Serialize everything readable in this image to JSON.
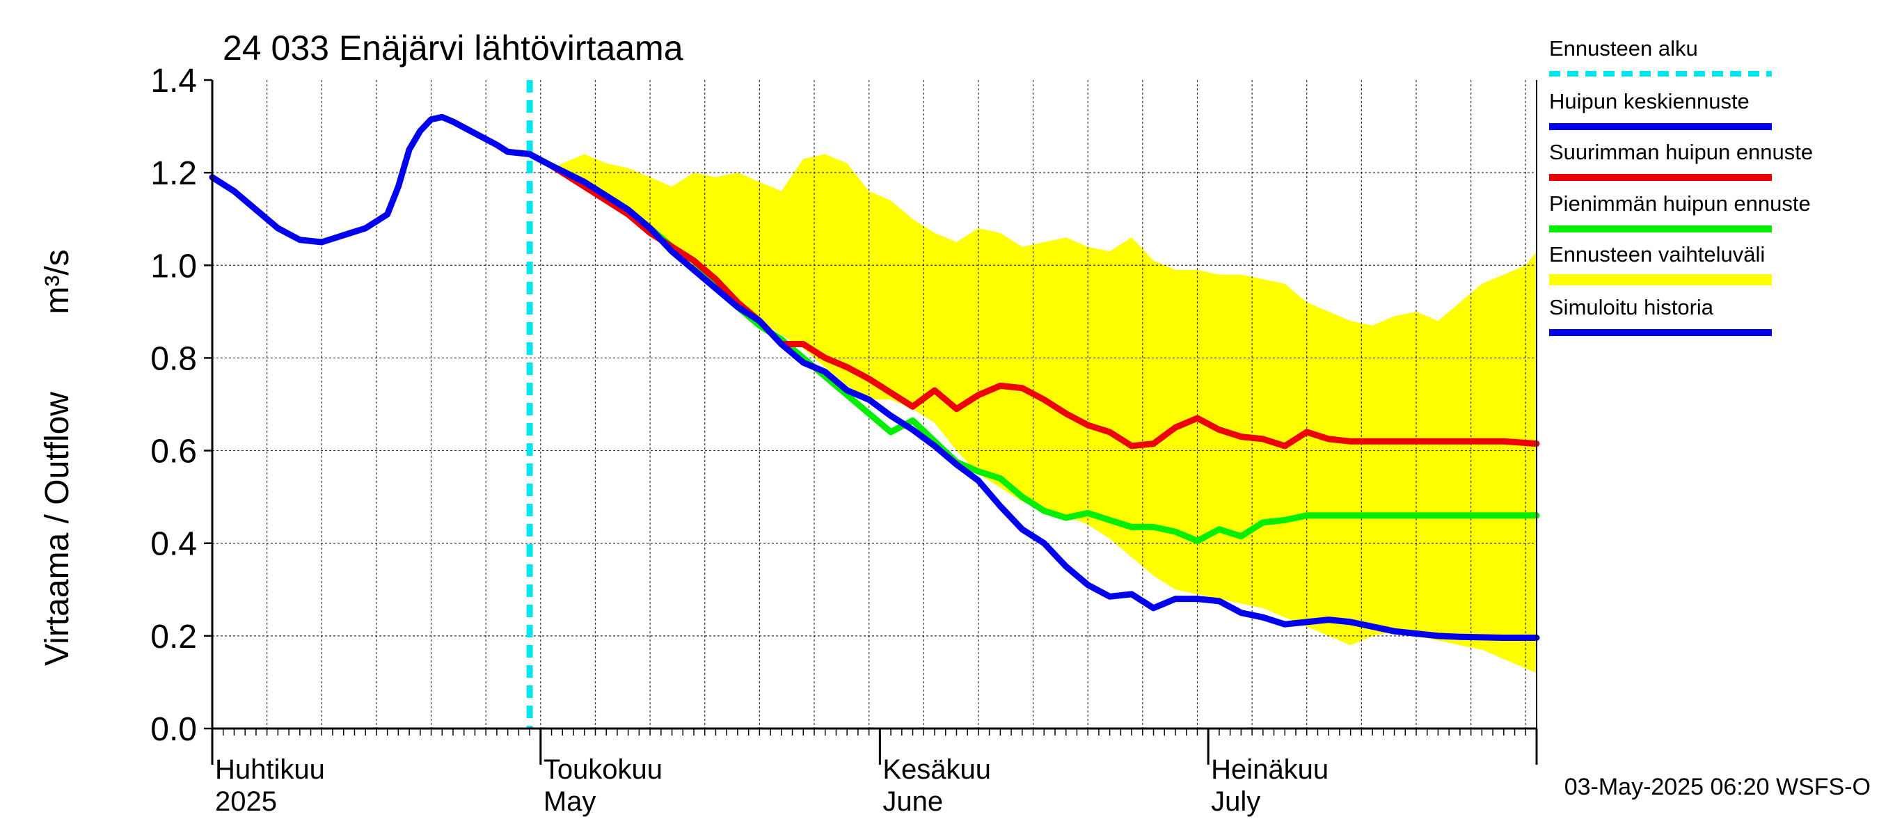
{
  "chart_data": {
    "type": "line",
    "title": "24 033 Enäjärvi lähtövirtaama",
    "ylabel": "Virtaama / Outflow",
    "yunit": "m³/s",
    "ylim": [
      0,
      1.4
    ],
    "yticks": [
      "0.0",
      "0.2",
      "0.4",
      "0.6",
      "0.8",
      "1.0",
      "1.2",
      "1.4"
    ],
    "xlim": [
      "2025-04-01",
      "2025-07-31"
    ],
    "month_labels": [
      {
        "fi": "Huhtikuu",
        "en": "2025",
        "date": "2025-04-01"
      },
      {
        "fi": "Toukokuu",
        "en": "May",
        "date": "2025-05-01"
      },
      {
        "fi": "Kesäkuu",
        "en": "June",
        "date": "2025-06-01"
      },
      {
        "fi": "Heinäkuu",
        "en": "July",
        "date": "2025-07-01"
      }
    ],
    "forecast_start": "2025-04-30",
    "footer": "03-May-2025 06:20 WSFS-O",
    "legend_position": "right",
    "legend": [
      {
        "label": "Ennusteen alku",
        "color": "#00e5ee",
        "style": "dashed"
      },
      {
        "label": "Huipun keskiennuste",
        "color": "#0000ee",
        "style": "solid"
      },
      {
        "label": "Suurimman huipun ennuste",
        "color": "#ee0000",
        "style": "solid"
      },
      {
        "label": "Pienimmän huipun ennuste",
        "color": "#00ee00",
        "style": "solid"
      },
      {
        "label": "Ennusteen vaihteluväli",
        "color": "#ffff00",
        "style": "band"
      },
      {
        "label": "Simuloitu historia",
        "color": "#0000ee",
        "style": "solid"
      }
    ],
    "band": {
      "x": [
        "2025-05-02",
        "2025-05-03",
        "2025-05-05",
        "2025-05-07",
        "2025-05-09",
        "2025-05-11",
        "2025-05-13",
        "2025-05-15",
        "2025-05-17",
        "2025-05-19",
        "2025-05-21",
        "2025-05-23",
        "2025-05-25",
        "2025-05-27",
        "2025-05-29",
        "2025-05-31",
        "2025-06-02",
        "2025-06-04",
        "2025-06-06",
        "2025-06-08",
        "2025-06-10",
        "2025-06-12",
        "2025-06-14",
        "2025-06-16",
        "2025-06-18",
        "2025-06-20",
        "2025-06-22",
        "2025-06-24",
        "2025-06-26",
        "2025-06-28",
        "2025-06-30",
        "2025-07-02",
        "2025-07-04",
        "2025-07-06",
        "2025-07-08",
        "2025-07-10",
        "2025-07-12",
        "2025-07-14",
        "2025-07-16",
        "2025-07-18",
        "2025-07-20",
        "2025-07-22",
        "2025-07-24",
        "2025-07-26",
        "2025-07-28",
        "2025-07-30",
        "2025-07-31"
      ],
      "upper": [
        1.21,
        1.22,
        1.24,
        1.22,
        1.21,
        1.19,
        1.17,
        1.2,
        1.19,
        1.2,
        1.18,
        1.16,
        1.23,
        1.24,
        1.22,
        1.16,
        1.14,
        1.1,
        1.07,
        1.05,
        1.08,
        1.07,
        1.04,
        1.05,
        1.06,
        1.04,
        1.03,
        1.06,
        1.01,
        0.99,
        0.99,
        0.98,
        0.98,
        0.97,
        0.96,
        0.92,
        0.9,
        0.88,
        0.87,
        0.89,
        0.9,
        0.88,
        0.92,
        0.96,
        0.98,
        1.0,
        1.03
      ],
      "lower": [
        1.21,
        1.2,
        1.18,
        1.15,
        1.11,
        1.08,
        1.03,
        0.99,
        0.95,
        0.91,
        0.88,
        0.85,
        0.82,
        0.78,
        0.74,
        0.71,
        0.71,
        0.69,
        0.66,
        0.6,
        0.55,
        0.52,
        0.49,
        0.47,
        0.46,
        0.44,
        0.41,
        0.37,
        0.33,
        0.3,
        0.29,
        0.28,
        0.27,
        0.26,
        0.24,
        0.22,
        0.2,
        0.18,
        0.2,
        0.21,
        0.2,
        0.19,
        0.18,
        0.17,
        0.15,
        0.13,
        0.12
      ]
    },
    "series": [
      {
        "name": "Simuloitu historia",
        "color": "#0000ee",
        "x": [
          "2025-04-01",
          "2025-04-03",
          "2025-04-05",
          "2025-04-07",
          "2025-04-09",
          "2025-04-11",
          "2025-04-13",
          "2025-04-15",
          "2025-04-17",
          "2025-04-18",
          "2025-04-19",
          "2025-04-20",
          "2025-04-21",
          "2025-04-22",
          "2025-04-23",
          "2025-04-25",
          "2025-04-27",
          "2025-04-28",
          "2025-04-30",
          "2025-05-02"
        ],
        "y": [
          1.19,
          1.16,
          1.12,
          1.08,
          1.055,
          1.05,
          1.065,
          1.08,
          1.11,
          1.17,
          1.25,
          1.29,
          1.315,
          1.32,
          1.31,
          1.285,
          1.26,
          1.245,
          1.24,
          1.215
        ]
      },
      {
        "name": "Huipun keskiennuste",
        "color": "#0000ee",
        "x": [
          "2025-05-02",
          "2025-05-05",
          "2025-05-07",
          "2025-05-09",
          "2025-05-11",
          "2025-05-13",
          "2025-05-15",
          "2025-05-17",
          "2025-05-19",
          "2025-05-21",
          "2025-05-23",
          "2025-05-25",
          "2025-05-27",
          "2025-05-29",
          "2025-05-31",
          "2025-06-02",
          "2025-06-04",
          "2025-06-06",
          "2025-06-08",
          "2025-06-10",
          "2025-06-12",
          "2025-06-14",
          "2025-06-16",
          "2025-06-18",
          "2025-06-20",
          "2025-06-22",
          "2025-06-24",
          "2025-06-26",
          "2025-06-28",
          "2025-06-30",
          "2025-07-02",
          "2025-07-04",
          "2025-07-06",
          "2025-07-08",
          "2025-07-10",
          "2025-07-12",
          "2025-07-14",
          "2025-07-16",
          "2025-07-18",
          "2025-07-20",
          "2025-07-22",
          "2025-07-24",
          "2025-07-26",
          "2025-07-28",
          "2025-07-31"
        ],
        "y": [
          1.215,
          1.18,
          1.15,
          1.12,
          1.08,
          1.03,
          0.99,
          0.95,
          0.91,
          0.88,
          0.83,
          0.79,
          0.77,
          0.73,
          0.71,
          0.675,
          0.645,
          0.61,
          0.57,
          0.535,
          0.48,
          0.43,
          0.4,
          0.35,
          0.31,
          0.285,
          0.29,
          0.26,
          0.28,
          0.28,
          0.275,
          0.25,
          0.24,
          0.225,
          0.23,
          0.235,
          0.23,
          0.22,
          0.21,
          0.205,
          0.2,
          0.198,
          0.197,
          0.196,
          0.196
        ]
      },
      {
        "name": "Suurimman huipun ennuste",
        "color": "#ee0000",
        "x": [
          "2025-05-02",
          "2025-05-05",
          "2025-05-07",
          "2025-05-09",
          "2025-05-11",
          "2025-05-13",
          "2025-05-15",
          "2025-05-17",
          "2025-05-19",
          "2025-05-21",
          "2025-05-23",
          "2025-05-25",
          "2025-05-27",
          "2025-05-29",
          "2025-05-31",
          "2025-06-02",
          "2025-06-04",
          "2025-06-06",
          "2025-06-08",
          "2025-06-10",
          "2025-06-12",
          "2025-06-14",
          "2025-06-16",
          "2025-06-18",
          "2025-06-20",
          "2025-06-22",
          "2025-06-24",
          "2025-06-26",
          "2025-06-28",
          "2025-06-30",
          "2025-07-02",
          "2025-07-04",
          "2025-07-06",
          "2025-07-08",
          "2025-07-10",
          "2025-07-12",
          "2025-07-14",
          "2025-07-16",
          "2025-07-18",
          "2025-07-20",
          "2025-07-22",
          "2025-07-24",
          "2025-07-26",
          "2025-07-28",
          "2025-07-31"
        ],
        "y": [
          1.215,
          1.17,
          1.14,
          1.11,
          1.07,
          1.04,
          1.01,
          0.97,
          0.92,
          0.88,
          0.83,
          0.83,
          0.8,
          0.78,
          0.755,
          0.725,
          0.695,
          0.73,
          0.69,
          0.72,
          0.74,
          0.735,
          0.71,
          0.68,
          0.655,
          0.64,
          0.61,
          0.615,
          0.65,
          0.67,
          0.645,
          0.63,
          0.625,
          0.61,
          0.64,
          0.625,
          0.62,
          0.62,
          0.62,
          0.62,
          0.62,
          0.62,
          0.62,
          0.62,
          0.615
        ]
      },
      {
        "name": "Pienimmän huipun ennuste",
        "color": "#00ee00",
        "x": [
          "2025-05-02",
          "2025-05-05",
          "2025-05-07",
          "2025-05-09",
          "2025-05-11",
          "2025-05-13",
          "2025-05-15",
          "2025-05-17",
          "2025-05-19",
          "2025-05-21",
          "2025-05-23",
          "2025-05-25",
          "2025-05-27",
          "2025-05-29",
          "2025-05-31",
          "2025-06-02",
          "2025-06-04",
          "2025-06-06",
          "2025-06-08",
          "2025-06-10",
          "2025-06-12",
          "2025-06-14",
          "2025-06-16",
          "2025-06-18",
          "2025-06-20",
          "2025-06-22",
          "2025-06-24",
          "2025-06-26",
          "2025-06-28",
          "2025-06-30",
          "2025-07-02",
          "2025-07-04",
          "2025-07-06",
          "2025-07-08",
          "2025-07-10",
          "2025-07-12",
          "2025-07-14",
          "2025-07-16",
          "2025-07-18",
          "2025-07-20",
          "2025-07-22",
          "2025-07-24",
          "2025-07-26",
          "2025-07-28",
          "2025-07-31"
        ],
        "y": [
          1.215,
          1.18,
          1.15,
          1.12,
          1.08,
          1.04,
          1.01,
          0.96,
          0.91,
          0.87,
          0.84,
          0.8,
          0.76,
          0.72,
          0.68,
          0.64,
          0.665,
          0.62,
          0.575,
          0.555,
          0.54,
          0.5,
          0.47,
          0.455,
          0.465,
          0.45,
          0.435,
          0.435,
          0.425,
          0.405,
          0.43,
          0.415,
          0.445,
          0.45,
          0.46,
          0.46,
          0.46,
          0.46,
          0.46,
          0.46,
          0.46,
          0.46,
          0.46,
          0.46,
          0.46
        ]
      }
    ]
  }
}
